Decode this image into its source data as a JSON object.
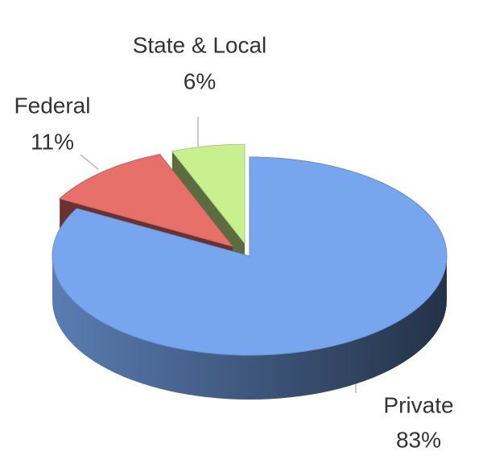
{
  "chart_data": {
    "type": "pie",
    "categories": [
      "Private",
      "Federal",
      "State & Local"
    ],
    "values": [
      83,
      11,
      6
    ],
    "value_labels": [
      "83%",
      "11%",
      "6%"
    ],
    "colors": [
      "#78a6ee",
      "#e8706b",
      "#c9f08e"
    ]
  }
}
